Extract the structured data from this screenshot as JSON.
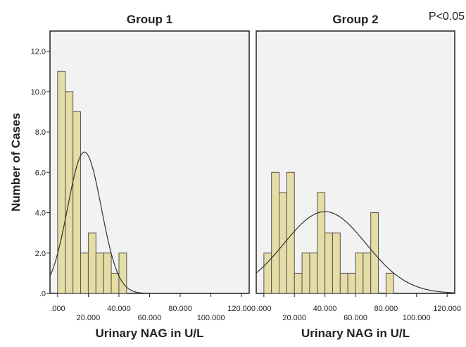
{
  "chart_data": [
    {
      "type": "bar",
      "panel_title": "Group 1",
      "annotation": "",
      "xlabel": "Urinary NAG in U/L",
      "ylabel": "Number of Cases",
      "xlim": [
        -5,
        125
      ],
      "ylim": [
        0,
        13
      ],
      "x_ticks": [
        ".000",
        "20.000",
        "40.000",
        "60.000",
        "80.000",
        "100.000",
        "120.000"
      ],
      "x_tick_values": [
        0,
        20,
        40,
        60,
        80,
        100,
        120
      ],
      "y_ticks": [
        ".0",
        "2.0",
        "4.0",
        "6.0",
        "8.0",
        "10.0",
        "12.0"
      ],
      "y_tick_values": [
        0,
        2,
        4,
        6,
        8,
        10,
        12
      ],
      "bin_width": 5,
      "bins": [
        {
          "x0": 0,
          "count": 11
        },
        {
          "x0": 5,
          "count": 10
        },
        {
          "x0": 10,
          "count": 9
        },
        {
          "x0": 15,
          "count": 2
        },
        {
          "x0": 20,
          "count": 3
        },
        {
          "x0": 25,
          "count": 2
        },
        {
          "x0": 30,
          "count": 2
        },
        {
          "x0": 35,
          "count": 1
        },
        {
          "x0": 40,
          "count": 2
        }
      ],
      "normal_curve": {
        "mean": 17.5,
        "sd": 11,
        "peak": 7.0
      },
      "bar_color": "#e6dca5",
      "bar_edge": "#555555",
      "background": "#f2f2f2"
    },
    {
      "type": "bar",
      "panel_title": "Group 2",
      "annotation": "P<0.05",
      "xlabel": "Urinary NAG in U/L",
      "ylabel": "",
      "xlim": [
        -5,
        125
      ],
      "ylim": [
        0,
        13
      ],
      "x_ticks": [
        ".000",
        "20.000",
        "40.000",
        "60.000",
        "80.000",
        "100.000",
        "120.000"
      ],
      "x_tick_values": [
        0,
        20,
        40,
        60,
        80,
        100,
        120
      ],
      "y_ticks": [],
      "y_tick_values": [],
      "bin_width": 5,
      "bins": [
        {
          "x0": 0,
          "count": 2
        },
        {
          "x0": 5,
          "count": 6
        },
        {
          "x0": 10,
          "count": 5
        },
        {
          "x0": 15,
          "count": 6
        },
        {
          "x0": 20,
          "count": 1
        },
        {
          "x0": 25,
          "count": 2
        },
        {
          "x0": 30,
          "count": 2
        },
        {
          "x0": 35,
          "count": 5
        },
        {
          "x0": 40,
          "count": 3
        },
        {
          "x0": 45,
          "count": 3
        },
        {
          "x0": 50,
          "count": 1
        },
        {
          "x0": 55,
          "count": 1
        },
        {
          "x0": 60,
          "count": 2
        },
        {
          "x0": 65,
          "count": 2
        },
        {
          "x0": 70,
          "count": 4
        },
        {
          "x0": 80,
          "count": 1
        }
      ],
      "normal_curve": {
        "mean": 40,
        "sd": 27,
        "peak": 4.05
      },
      "bar_color": "#e6dca5",
      "bar_edge": "#555555",
      "background": "#f2f2f2"
    }
  ]
}
